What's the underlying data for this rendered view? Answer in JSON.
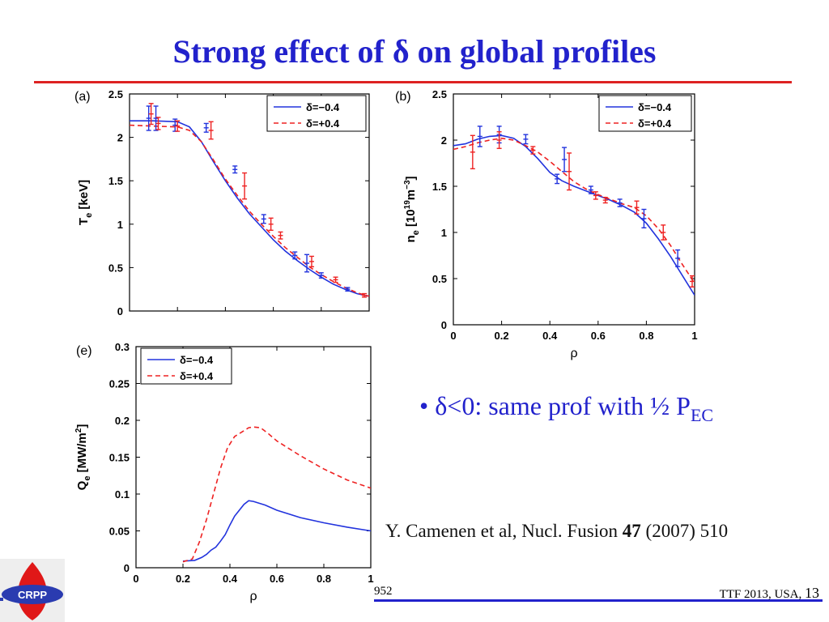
{
  "slide": {
    "title": "Strong effect of δ on global profiles",
    "bullet": {
      "marker": "•",
      "text": "δ<0: same prof with ½ P",
      "subscript": "EC"
    },
    "citation": {
      "pre": "Y. Camenen et al, Nucl. Fusion ",
      "volume": "47",
      "post": " (2007) 510"
    },
    "footer_left": "952",
    "footer_right": "TTF 2013, USA, ",
    "page_number": "13",
    "logo_text": "CRPP",
    "colors": {
      "title": "#2222cc",
      "rule": "#dd2222",
      "footer_rule": "#2222cc",
      "series_neg": "#2233dd",
      "series_pos": "#ee2222"
    }
  },
  "chart_data": [
    {
      "panel": "(a)",
      "type": "line",
      "xlabel": "",
      "ylabel": "T_e [keV]",
      "ylabel_main": "T",
      "ylabel_sub": "e",
      "ylabel_rest": " [keV]",
      "xlim": [
        0,
        1
      ],
      "ylim": [
        0,
        2.5
      ],
      "yticks": [
        "0",
        "0.5",
        "1",
        "1.5",
        "2",
        "2.5"
      ],
      "yticks_values": [
        0,
        0.5,
        1,
        1.5,
        2,
        2.5
      ],
      "legend": [
        "δ=−0.4",
        "δ=+0.4"
      ],
      "legend_position": "top-right",
      "series": [
        {
          "name": "δ=−0.4",
          "style": "solid",
          "color": "#2233dd",
          "x": [
            0,
            0.1,
            0.2,
            0.25,
            0.3,
            0.35,
            0.4,
            0.45,
            0.5,
            0.55,
            0.6,
            0.65,
            0.7,
            0.75,
            0.8,
            0.85,
            0.9,
            0.95,
            1.0
          ],
          "y": [
            2.19,
            2.19,
            2.18,
            2.12,
            1.95,
            1.72,
            1.5,
            1.3,
            1.12,
            0.97,
            0.82,
            0.69,
            0.58,
            0.48,
            0.39,
            0.31,
            0.25,
            0.2,
            0.17
          ]
        },
        {
          "name": "δ=+0.4",
          "style": "dashed",
          "color": "#ee2222",
          "x": [
            0,
            0.1,
            0.2,
            0.25,
            0.3,
            0.35,
            0.4,
            0.45,
            0.5,
            0.55,
            0.6,
            0.65,
            0.7,
            0.75,
            0.8,
            0.85,
            0.9,
            0.95,
            1.0
          ],
          "y": [
            2.14,
            2.13,
            2.12,
            2.08,
            1.95,
            1.74,
            1.52,
            1.33,
            1.15,
            1.0,
            0.86,
            0.73,
            0.62,
            0.51,
            0.42,
            0.34,
            0.27,
            0.21,
            0.17
          ]
        }
      ],
      "errorbars": [
        {
          "series": "δ=−0.4",
          "color": "#2233dd",
          "points": [
            [
              0.08,
              2.22,
              0.14
            ],
            [
              0.11,
              2.22,
              0.14
            ],
            [
              0.19,
              2.14,
              0.07
            ],
            [
              0.32,
              2.11,
              0.05
            ],
            [
              0.44,
              1.63,
              0.04
            ],
            [
              0.56,
              1.06,
              0.05
            ],
            [
              0.69,
              0.64,
              0.04
            ],
            [
              0.74,
              0.55,
              0.1
            ],
            [
              0.8,
              0.41,
              0.03
            ],
            [
              0.91,
              0.25,
              0.02
            ]
          ]
        },
        {
          "series": "δ=+0.4",
          "color": "#ee2222",
          "points": [
            [
              0.09,
              2.27,
              0.12
            ],
            [
              0.12,
              2.16,
              0.07
            ],
            [
              0.2,
              2.13,
              0.06
            ],
            [
              0.34,
              2.08,
              0.1
            ],
            [
              0.48,
              1.44,
              0.15
            ],
            [
              0.59,
              1.0,
              0.07
            ],
            [
              0.63,
              0.87,
              0.04
            ],
            [
              0.76,
              0.57,
              0.06
            ],
            [
              0.86,
              0.36,
              0.03
            ],
            [
              0.98,
              0.18,
              0.02
            ]
          ]
        }
      ]
    },
    {
      "panel": "(b)",
      "type": "line",
      "xlabel": "ρ",
      "ylabel": "n_e [10^19 m^-3]",
      "ylabel_main": "n",
      "ylabel_sub": "e",
      "ylabel_rest": " [10",
      "ylabel_exp1": "19",
      "ylabel_mid": "m",
      "ylabel_exp2": "−3",
      "ylabel_end": "]",
      "xlim": [
        0,
        1
      ],
      "ylim": [
        0,
        2.5
      ],
      "xticks": [
        "0",
        "0.2",
        "0.4",
        "0.6",
        "0.8",
        "1"
      ],
      "xticks_values": [
        0,
        0.2,
        0.4,
        0.6,
        0.8,
        1
      ],
      "yticks": [
        "0",
        "0.5",
        "1",
        "1.5",
        "2",
        "2.5"
      ],
      "yticks_values": [
        0,
        0.5,
        1,
        1.5,
        2,
        2.5
      ],
      "legend": [
        "δ=−0.4",
        "δ=+0.4"
      ],
      "legend_position": "top-right",
      "series": [
        {
          "name": "δ=−0.4",
          "style": "solid",
          "color": "#2233dd",
          "x": [
            0,
            0.05,
            0.1,
            0.15,
            0.2,
            0.25,
            0.3,
            0.35,
            0.4,
            0.45,
            0.5,
            0.55,
            0.6,
            0.65,
            0.7,
            0.75,
            0.8,
            0.85,
            0.9,
            0.95,
            1.0
          ],
          "y": [
            1.94,
            1.96,
            2.01,
            2.04,
            2.05,
            2.02,
            1.93,
            1.8,
            1.65,
            1.56,
            1.5,
            1.45,
            1.4,
            1.35,
            1.29,
            1.22,
            1.1,
            0.93,
            0.74,
            0.53,
            0.32
          ]
        },
        {
          "name": "δ=+0.4",
          "style": "dashed",
          "color": "#ee2222",
          "x": [
            0,
            0.05,
            0.1,
            0.15,
            0.2,
            0.25,
            0.3,
            0.35,
            0.4,
            0.45,
            0.5,
            0.55,
            0.6,
            0.65,
            0.7,
            0.75,
            0.8,
            0.85,
            0.9,
            0.95,
            1.0
          ],
          "y": [
            1.9,
            1.93,
            1.97,
            2.0,
            2.02,
            2.0,
            1.94,
            1.87,
            1.77,
            1.66,
            1.55,
            1.47,
            1.41,
            1.36,
            1.31,
            1.27,
            1.18,
            1.04,
            0.86,
            0.65,
            0.45
          ]
        }
      ],
      "errorbars": [
        {
          "series": "δ=−0.4",
          "color": "#2233dd",
          "points": [
            [
              0.11,
              2.04,
              0.11
            ],
            [
              0.19,
              2.06,
              0.09
            ],
            [
              0.3,
              2.01,
              0.05
            ],
            [
              0.43,
              1.58,
              0.05
            ],
            [
              0.46,
              1.79,
              0.13
            ],
            [
              0.57,
              1.46,
              0.04
            ],
            [
              0.69,
              1.32,
              0.04
            ],
            [
              0.79,
              1.15,
              0.1
            ],
            [
              0.93,
              0.72,
              0.09
            ]
          ]
        },
        {
          "series": "δ=+0.4",
          "color": "#ee2222",
          "points": [
            [
              0.08,
              1.87,
              0.18
            ],
            [
              0.19,
              2.0,
              0.09
            ],
            [
              0.33,
              1.89,
              0.04
            ],
            [
              0.48,
              1.66,
              0.2
            ],
            [
              0.59,
              1.4,
              0.04
            ],
            [
              0.63,
              1.35,
              0.03
            ],
            [
              0.76,
              1.27,
              0.07
            ],
            [
              0.87,
              1.0,
              0.08
            ],
            [
              0.99,
              0.47,
              0.06
            ]
          ]
        }
      ]
    },
    {
      "panel": "(e)",
      "type": "line",
      "xlabel": "ρ",
      "ylabel": "Q_e [MW/m^2]",
      "ylabel_main": "Q",
      "ylabel_sub": "e",
      "ylabel_rest": " [MW/m",
      "ylabel_exp1": "2",
      "ylabel_end": "]",
      "xlim": [
        0,
        1
      ],
      "ylim": [
        0,
        0.3
      ],
      "xticks": [
        "0",
        "0.2",
        "0.4",
        "0.6",
        "0.8",
        "1"
      ],
      "xticks_values": [
        0,
        0.2,
        0.4,
        0.6,
        0.8,
        1
      ],
      "yticks": [
        "0",
        "0.05",
        "0.1",
        "0.15",
        "0.2",
        "0.25",
        "0.3"
      ],
      "yticks_values": [
        0,
        0.05,
        0.1,
        0.15,
        0.2,
        0.25,
        0.3
      ],
      "legend": [
        "δ=−0.4",
        "δ=+0.4"
      ],
      "legend_position": "top-left",
      "series": [
        {
          "name": "δ=−0.4",
          "style": "solid",
          "color": "#2233dd",
          "x": [
            0.2,
            0.25,
            0.28,
            0.3,
            0.32,
            0.34,
            0.36,
            0.38,
            0.4,
            0.42,
            0.44,
            0.46,
            0.48,
            0.5,
            0.55,
            0.6,
            0.7,
            0.8,
            0.9,
            1.0
          ],
          "y": [
            0.009,
            0.01,
            0.014,
            0.018,
            0.024,
            0.028,
            0.036,
            0.045,
            0.058,
            0.07,
            0.078,
            0.086,
            0.091,
            0.09,
            0.085,
            0.078,
            0.068,
            0.061,
            0.055,
            0.05
          ]
        },
        {
          "name": "δ=+0.4",
          "style": "dashed",
          "color": "#ee2222",
          "x": [
            0.2,
            0.24,
            0.27,
            0.3,
            0.33,
            0.36,
            0.39,
            0.42,
            0.45,
            0.48,
            0.5,
            0.53,
            0.56,
            0.6,
            0.7,
            0.8,
            0.9,
            1.0
          ],
          "y": [
            0.008,
            0.012,
            0.035,
            0.065,
            0.1,
            0.135,
            0.163,
            0.178,
            0.184,
            0.19,
            0.191,
            0.19,
            0.183,
            0.172,
            0.152,
            0.134,
            0.119,
            0.108
          ]
        }
      ]
    }
  ]
}
